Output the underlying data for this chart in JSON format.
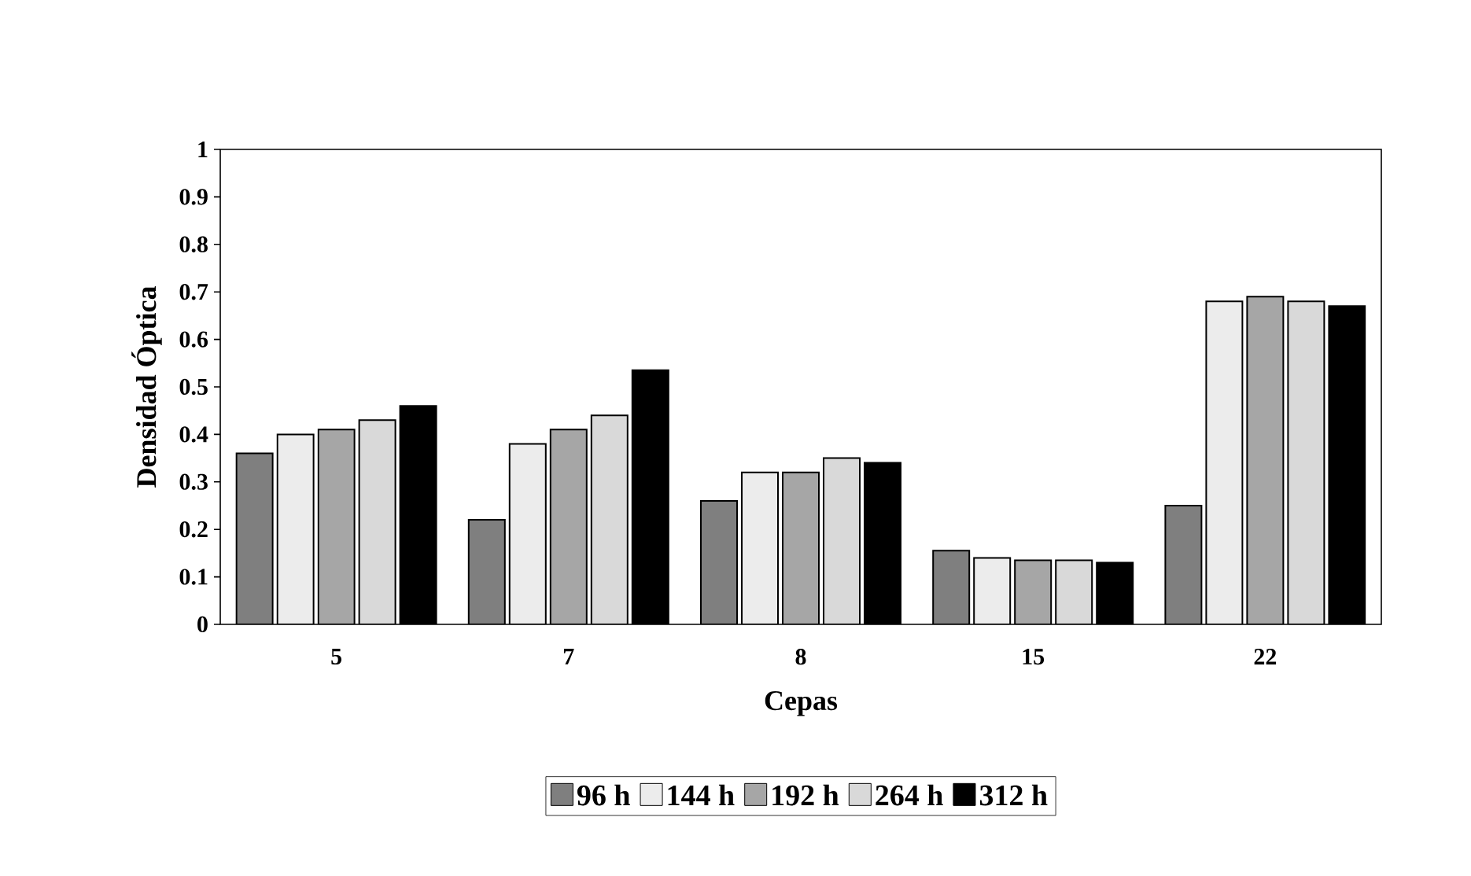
{
  "chart_data": {
    "type": "bar",
    "xlabel": "Cepas",
    "ylabel": "Densidad Óptica",
    "categories": [
      "5",
      "7",
      "8",
      "15",
      "22"
    ],
    "series": [
      {
        "name": "96 h",
        "color": "#7f7f7f",
        "values": [
          0.36,
          0.22,
          0.26,
          0.155,
          0.25
        ]
      },
      {
        "name": "144 h",
        "color": "#ececec",
        "values": [
          0.4,
          0.38,
          0.32,
          0.14,
          0.68
        ]
      },
      {
        "name": "192 h",
        "color": "#a6a6a6",
        "values": [
          0.41,
          0.41,
          0.32,
          0.135,
          0.69
        ]
      },
      {
        "name": "264 h",
        "color": "#d9d9d9",
        "values": [
          0.43,
          0.44,
          0.35,
          0.135,
          0.68
        ]
      },
      {
        "name": "312 h",
        "color": "#000000",
        "values": [
          0.46,
          0.535,
          0.34,
          0.13,
          0.67
        ]
      }
    ],
    "ylim": [
      0,
      1
    ],
    "yticks": [
      0,
      0.1,
      0.2,
      0.3,
      0.4,
      0.5,
      0.6,
      0.7,
      0.8,
      0.9,
      1
    ],
    "grid": false,
    "legend": "bottom"
  }
}
